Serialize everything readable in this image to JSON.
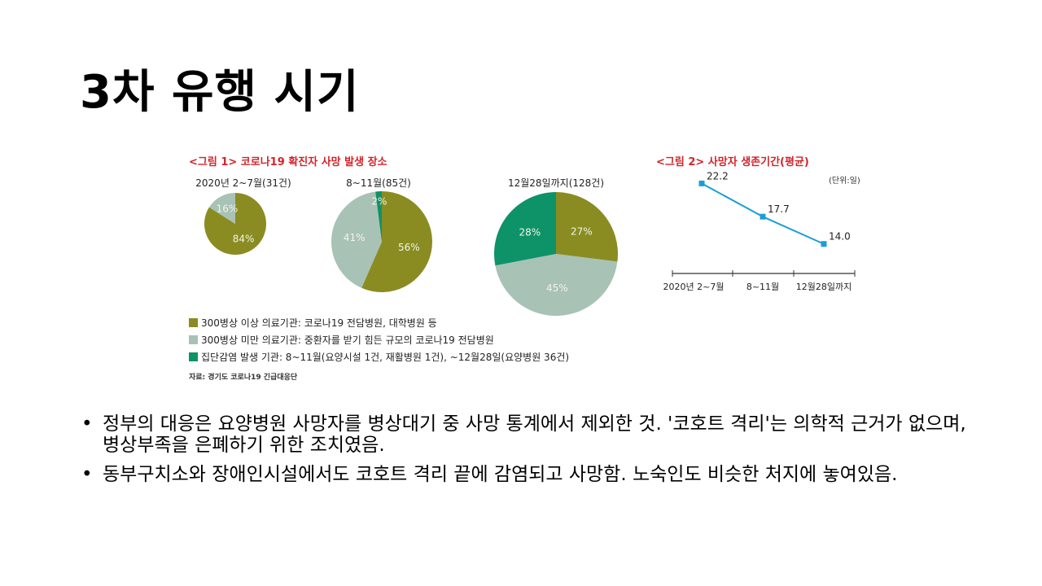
{
  "slide": {
    "title": "3차 유행 시기"
  },
  "chart_data": [
    {
      "type": "pie",
      "title": "<그림 1> 코로나19 확진자 사망 발생 장소",
      "pies": [
        {
          "label": "2020년 2~7월(31건)",
          "values": [
            84,
            16,
            0
          ],
          "labels": [
            "84%",
            "16%",
            ""
          ]
        },
        {
          "label": "8~11월(85건)",
          "values": [
            56,
            41,
            2
          ],
          "labels": [
            "56%",
            "41%",
            "2%"
          ]
        },
        {
          "label": "12월28일까지(128건)",
          "values": [
            27,
            45,
            28
          ],
          "labels": [
            "27%",
            "45%",
            "28%"
          ]
        }
      ],
      "legend": [
        "300병상 이상 의료기관: 코로나19 전담병원, 대학병원 등",
        "300병상 미만 의료기관: 중환자를 받기 힘든 규모의 코로나19 전담병원",
        "집단감염 발생 기관: 8~11월(요양시설 1건, 재활병원 1건), ~12월28일(요양병원 36건)"
      ],
      "colors": [
        "#8a8c22",
        "#a8c2b6",
        "#0e9268"
      ],
      "source": "자료: 경기도 코로나19 긴급대응단"
    },
    {
      "type": "line",
      "title": "<그림 2> 사망자 생존기간(평균)",
      "unit": "(단위:일)",
      "categories": [
        "2020년 2~7월",
        "8~11월",
        "12월28일까지"
      ],
      "values": [
        22.2,
        17.7,
        14.0
      ],
      "value_labels": [
        "22.2",
        "17.7",
        "14.0"
      ],
      "ylim": [
        10,
        25
      ],
      "color": "#1a9fd4"
    }
  ],
  "bullets": [
    "정부의 대응은 요양병원 사망자를 병상대기 중 사망 통계에서 제외한 것. '코호트 격리'는 의학적 근거가 없으며, 병상부족을 은폐하기 위한 조치였음.",
    "동부구치소와 장애인시설에서도 코호트 격리 끝에 감염되고 사망함. 노숙인도 비슷한 처지에 놓여있음."
  ]
}
